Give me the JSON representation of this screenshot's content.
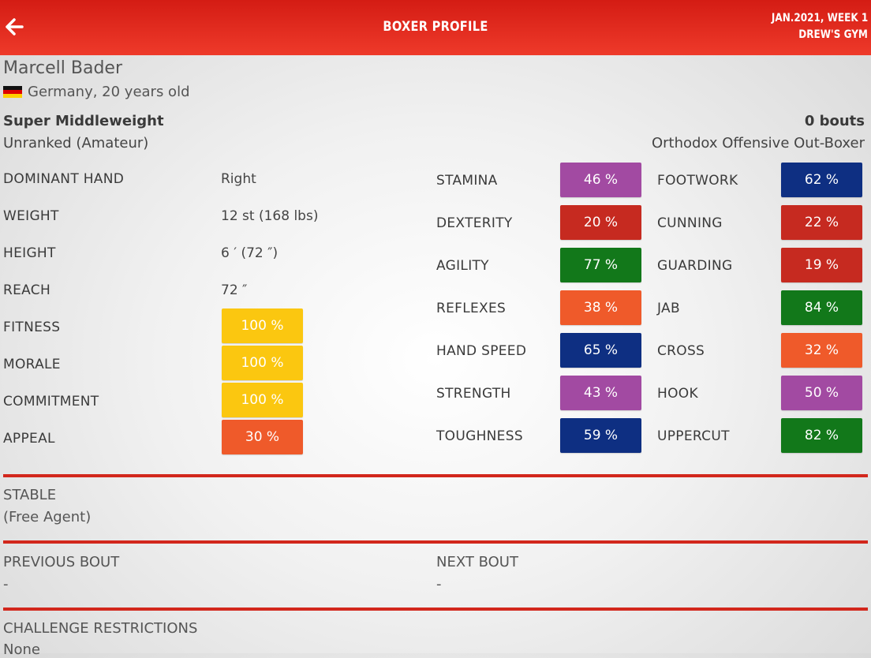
{
  "header": {
    "title": "BOXER PROFILE",
    "date": "JAN.2021, WEEK 1",
    "gym": "DREW'S GYM"
  },
  "boxer": {
    "name": "Marcell Bader",
    "country_age": "Germany, 20 years old",
    "weight_class": "Super Middleweight",
    "rank": "Unranked (Amateur)",
    "bouts": "0 bouts",
    "style": "Orthodox Offensive Out-Boxer"
  },
  "info": {
    "dominant_hand_label": "DOMINANT HAND",
    "dominant_hand": "Right",
    "weight_label": "WEIGHT",
    "weight": "12 st (168 lbs)",
    "height_label": "HEIGHT",
    "height": "6 ′ (72 ″)",
    "reach_label": "REACH",
    "reach": "72 ″",
    "fitness_label": "FITNESS",
    "fitness": "100 %",
    "morale_label": "MORALE",
    "morale": "100 %",
    "commitment_label": "COMMITMENT",
    "commitment": "100 %",
    "appeal_label": "APPEAL",
    "appeal": "30 %"
  },
  "stats_left": [
    {
      "label": "STAMINA",
      "value": "46 %",
      "color": "#a24aa2"
    },
    {
      "label": "DEXTERITY",
      "value": "20 %",
      "color": "#c62a20"
    },
    {
      "label": "AGILITY",
      "value": "77 %",
      "color": "#12781a"
    },
    {
      "label": "REFLEXES",
      "value": "38 %",
      "color": "#ef5a2a"
    },
    {
      "label": "HAND SPEED",
      "value": "65 %",
      "color": "#0e2f82"
    },
    {
      "label": "STRENGTH",
      "value": "43 %",
      "color": "#a24aa2"
    },
    {
      "label": "TOUGHNESS",
      "value": "59 %",
      "color": "#0e2f82"
    }
  ],
  "stats_right": [
    {
      "label": "FOOTWORK",
      "value": "62 %",
      "color": "#0e2f82"
    },
    {
      "label": "CUNNING",
      "value": "22 %",
      "color": "#c62a20"
    },
    {
      "label": "GUARDING",
      "value": "19 %",
      "color": "#c62a20"
    },
    {
      "label": "JAB",
      "value": "84 %",
      "color": "#12781a"
    },
    {
      "label": "CROSS",
      "value": "32 %",
      "color": "#ef5a2a"
    },
    {
      "label": "HOOK",
      "value": "50 %",
      "color": "#a24aa2"
    },
    {
      "label": "UPPERCUT",
      "value": "82 %",
      "color": "#12781a"
    }
  ],
  "colors": {
    "header_red": "#d41c14",
    "yellow": "#fbc710",
    "orange": "#ef5a2a",
    "divider": "#d2271c"
  },
  "sections": {
    "stable_label": "STABLE",
    "stable_value": "(Free Agent)",
    "previous_label": "PREVIOUS BOUT",
    "previous_value": "-",
    "next_label": "NEXT BOUT",
    "next_value": "-",
    "restrictions_label": "CHALLENGE RESTRICTIONS",
    "restrictions_value": "None"
  }
}
